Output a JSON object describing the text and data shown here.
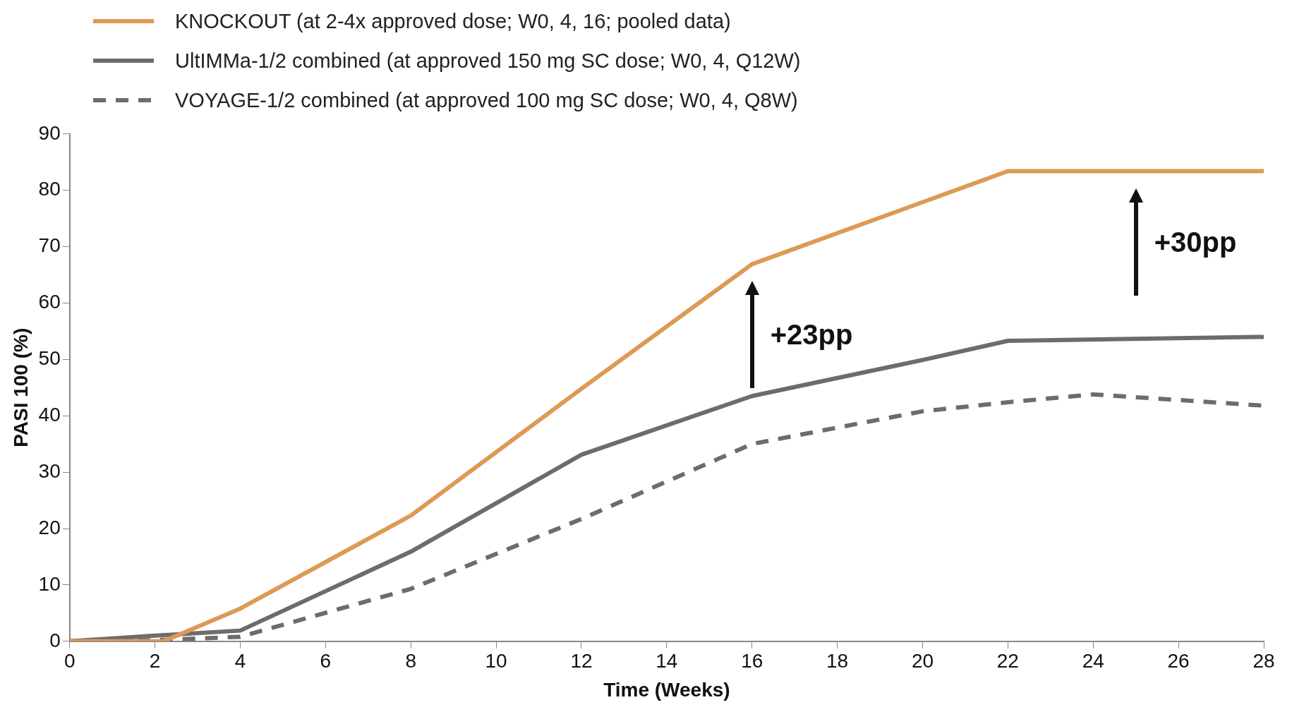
{
  "chart_data": {
    "type": "line",
    "xlabel": "Time (Weeks)",
    "ylabel": "PASI 100 (%)",
    "series": [
      {
        "name": "KNOCKOUT (at 2-4x approved dose; W0, 4, 16; pooled data)",
        "color": "#dd9a55",
        "x": [
          0,
          2.2,
          4,
          8,
          12,
          16,
          22,
          28
        ],
        "values": [
          0,
          0,
          5.8,
          22.3,
          44.8,
          66.9,
          83.4,
          83.4
        ]
      },
      {
        "name": "UltIMMa-1/2 combined (at approved 150 mg SC dose; W0, 4, Q12W)",
        "color": "#6f6b6d",
        "x": [
          0,
          2,
          4,
          8,
          12,
          16,
          20,
          22,
          28
        ],
        "values": [
          0,
          1.0,
          1.9,
          15.9,
          33.1,
          43.5,
          49.9,
          53.3,
          54.0
        ]
      },
      {
        "name": "VOYAGE-1/2 combined (at approved 100 mg SC dose; W0, 4, Q8W)",
        "color": "#6f6b6d",
        "line_style": "dashed",
        "x": [
          0,
          2,
          4,
          8,
          12,
          16,
          20,
          22,
          24,
          28
        ],
        "values": [
          0,
          0.2,
          0.8,
          9.3,
          21.7,
          35.0,
          40.8,
          42.4,
          43.8,
          41.8
        ]
      }
    ],
    "xlim": [
      0,
      28
    ],
    "xticks": [
      0,
      2,
      4,
      6,
      8,
      10,
      12,
      14,
      16,
      18,
      20,
      22,
      24,
      26,
      28
    ],
    "ylim": [
      0,
      90
    ],
    "yticks": [
      0,
      10,
      20,
      30,
      40,
      50,
      60,
      70,
      80,
      90
    ],
    "legend": "top left",
    "marker": "none",
    "line_style": "solid",
    "annotations": [
      {
        "text": "+23pp",
        "x": 16,
        "y": 66.9
      },
      {
        "text": "+30pp",
        "x": 25,
        "y": 83.4
      }
    ]
  }
}
